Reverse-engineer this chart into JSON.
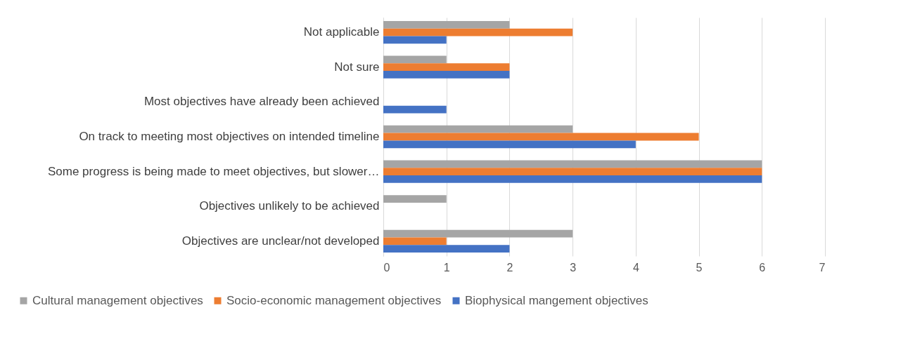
{
  "chart_data": {
    "type": "bar",
    "orientation": "horizontal",
    "categories": [
      "Not applicable",
      "Not sure",
      "Most objectives have already been achieved",
      "On track to meeting most objectives on intended timeline",
      "Some progress is being made to meet objectives, but slower…",
      "Objectives unlikely to be achieved",
      "Objectives are unclear/not developed"
    ],
    "series": [
      {
        "name": "Cultural management objectives",
        "color": "#a5a5a5",
        "values": [
          2,
          1,
          0,
          3,
          6,
          1,
          3
        ]
      },
      {
        "name": "Socio-economic management objectives",
        "color": "#ed7d31",
        "values": [
          3,
          2,
          0,
          5,
          6,
          0,
          1
        ]
      },
      {
        "name": "Biophysical mangement objectives",
        "color": "#4472c4",
        "values": [
          1,
          2,
          1,
          4,
          6,
          0,
          2
        ]
      }
    ],
    "xlim": [
      0,
      7
    ],
    "xticks": [
      0,
      1,
      2,
      3,
      4,
      5,
      6,
      7
    ],
    "grid": "x",
    "legend": "bottom"
  }
}
